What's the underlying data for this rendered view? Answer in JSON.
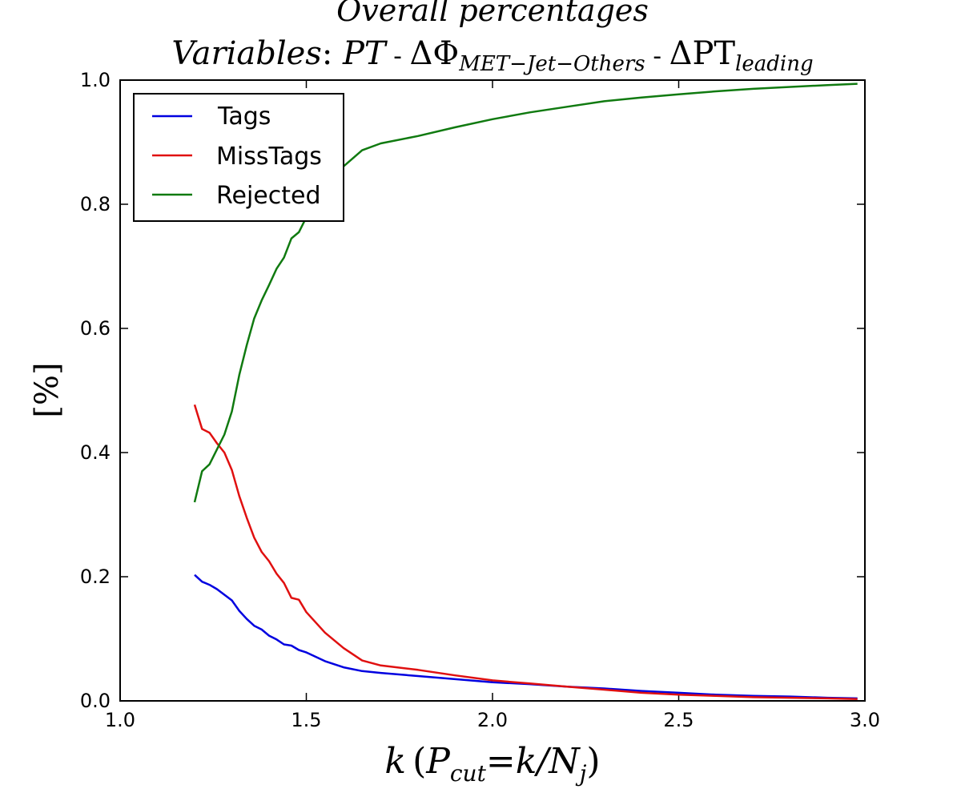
{
  "chart_data": {
    "type": "line",
    "title_line1": "Overall percentages",
    "title_line2": {
      "prefix": "Variables",
      "colon": ": ",
      "v1": "PT",
      "sep": " - ",
      "v2_main": "ΔΦ",
      "v2_sub": "MET−Jet−Others",
      "v3_main": "ΔPT",
      "v3_sub": "leading"
    },
    "ylabel": "[%]",
    "xlabel": {
      "k": "k",
      "open": "(",
      "P": "P",
      "P_sub": "cut",
      "eq": "=",
      "rhs": "k/N",
      "N_sub": "j",
      "close": ")"
    },
    "xlim": [
      1.0,
      3.0
    ],
    "ylim": [
      0.0,
      1.0
    ],
    "x_ticks": [
      "1.0",
      "1.5",
      "2.0",
      "2.5",
      "3.0"
    ],
    "y_ticks": [
      "0.0",
      "0.2",
      "0.4",
      "0.6",
      "0.8",
      "1.0"
    ],
    "legend": {
      "placement": "top-left"
    },
    "x": [
      1.2,
      1.22,
      1.24,
      1.26,
      1.28,
      1.3,
      1.32,
      1.34,
      1.36,
      1.38,
      1.4,
      1.42,
      1.44,
      1.46,
      1.48,
      1.5,
      1.55,
      1.6,
      1.65,
      1.7,
      1.8,
      1.9,
      2.0,
      2.1,
      2.2,
      2.3,
      2.4,
      2.5,
      2.6,
      2.7,
      2.8,
      2.9,
      2.98
    ],
    "series": [
      {
        "name": "Tags",
        "color": "#0000e0",
        "values": [
          0.203,
          0.192,
          0.187,
          0.18,
          0.171,
          0.162,
          0.145,
          0.132,
          0.121,
          0.115,
          0.105,
          0.099,
          0.091,
          0.089,
          0.082,
          0.078,
          0.064,
          0.054,
          0.048,
          0.045,
          0.04,
          0.035,
          0.03,
          0.027,
          0.023,
          0.02,
          0.016,
          0.013,
          0.01,
          0.008,
          0.007,
          0.005,
          0.004
        ]
      },
      {
        "name": "MissTags",
        "color": "#e01010",
        "values": [
          0.477,
          0.438,
          0.432,
          0.415,
          0.4,
          0.372,
          0.33,
          0.295,
          0.263,
          0.24,
          0.225,
          0.205,
          0.19,
          0.166,
          0.163,
          0.143,
          0.11,
          0.085,
          0.065,
          0.057,
          0.05,
          0.041,
          0.033,
          0.028,
          0.023,
          0.018,
          0.013,
          0.01,
          0.008,
          0.006,
          0.005,
          0.004,
          0.003
        ]
      },
      {
        "name": "Rejected",
        "color": "#107a10",
        "values": [
          0.32,
          0.37,
          0.381,
          0.405,
          0.429,
          0.466,
          0.525,
          0.573,
          0.616,
          0.645,
          0.67,
          0.696,
          0.714,
          0.745,
          0.755,
          0.779,
          0.826,
          0.861,
          0.887,
          0.898,
          0.91,
          0.924,
          0.937,
          0.948,
          0.957,
          0.966,
          0.972,
          0.977,
          0.982,
          0.986,
          0.989,
          0.992,
          0.994
        ]
      }
    ]
  }
}
